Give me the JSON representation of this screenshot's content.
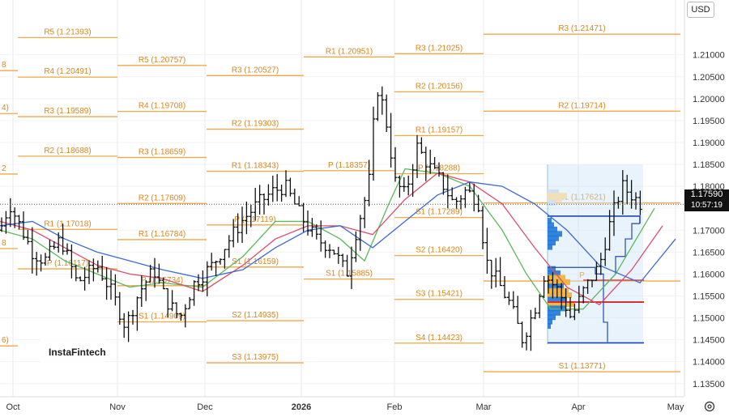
{
  "currency_button": "USD",
  "watermark": "InstaFintech",
  "last_price": {
    "value": "1.17590",
    "countdown": "10:57:19",
    "price": 1.1759
  },
  "colors": {
    "pivot": "#f0a848",
    "pivot_text": "#d9861c",
    "candles": "#111111",
    "ma_green": "#5cb85c",
    "ma_red": "#d94f6a",
    "ma_blue": "#3e6ad4",
    "grid": "#e8e8e8",
    "profile_blue": "#1f78d8",
    "profile_orange": "#f5b030",
    "range_box": "#cfe4f7",
    "poc_red": "#d9262c",
    "box_blue": "#2149b8"
  },
  "chart_data": {
    "type": "candlestick",
    "symbol_unit": "USD",
    "y_range": [
      1.132,
      1.2225
    ],
    "y_ticks": [
      "1.21000",
      "1.20500",
      "1.20000",
      "1.19500",
      "1.19000",
      "1.18500",
      "1.18000",
      "1.17500",
      "1.17000",
      "1.16500",
      "1.16000",
      "1.15500",
      "1.15000",
      "1.14500",
      "1.14000",
      "1.13500"
    ],
    "x_labels": [
      "Oct",
      "Nov",
      "Dec",
      "2026",
      "Feb",
      "Mar",
      "Apr",
      "May"
    ],
    "pivot_levels": [
      {
        "label": "8",
        "value": 1.2064,
        "period": 0
      },
      {
        "label": "4)",
        "value": 1.1966,
        "period": 0
      },
      {
        "label": "2",
        "value": 1.1828,
        "period": 0
      },
      {
        "label": "8",
        "value": 1.1658,
        "period": 0
      },
      {
        "label": "6)",
        "value": 1.1436,
        "period": 0
      },
      {
        "label": "R5 (1.21393)",
        "value": 1.21393,
        "period": 1
      },
      {
        "label": "R4 (1.20491)",
        "value": 1.20491,
        "period": 1
      },
      {
        "label": "R3 (1.19589)",
        "value": 1.19589,
        "period": 1
      },
      {
        "label": "R2 (1.18688)",
        "value": 1.18688,
        "period": 1
      },
      {
        "label": "R1 (1.17018)",
        "value": 1.17018,
        "period": 1
      },
      {
        "label": "P (1.16117)",
        "value": 1.16117,
        "period": 1
      },
      {
        "label": "R5 (1.20757)",
        "value": 1.20757,
        "period": 2
      },
      {
        "label": "R4 (1.19708)",
        "value": 1.19708,
        "period": 2
      },
      {
        "label": "R3 (1.18659)",
        "value": 1.18659,
        "period": 2
      },
      {
        "label": "R2 (1.17609)",
        "value": 1.17609,
        "period": 2
      },
      {
        "label": "R1 (1.16784)",
        "value": 1.16784,
        "period": 2
      },
      {
        "label": "P (1.15734)",
        "value": 1.15734,
        "period": 2
      },
      {
        "label": "S1 (1.14909)",
        "value": 1.14909,
        "period": 2
      },
      {
        "label": "R3 (1.20527)",
        "value": 1.20527,
        "period": 3
      },
      {
        "label": "R2 (1.19303)",
        "value": 1.19303,
        "period": 3
      },
      {
        "label": "R1 (1.18343)",
        "value": 1.18343,
        "period": 3
      },
      {
        "label": "P (1.17119)",
        "value": 1.17119,
        "period": 3
      },
      {
        "label": "S1 (1.16159)",
        "value": 1.16159,
        "period": 3
      },
      {
        "label": "S2 (1.14935)",
        "value": 1.14935,
        "period": 3
      },
      {
        "label": "S3 (1.13975)",
        "value": 1.13975,
        "period": 3
      },
      {
        "label": "R1 (1.20951)",
        "value": 1.20951,
        "period": 4
      },
      {
        "label": "P (1.18357)",
        "value": 1.18357,
        "period": 4
      },
      {
        "label": "S1 (1.15885)",
        "value": 1.15885,
        "period": 4
      },
      {
        "label": "R3 (1.21025)",
        "value": 1.21025,
        "period": 5
      },
      {
        "label": "R2 (1.20156)",
        "value": 1.20156,
        "period": 5
      },
      {
        "label": "R1 (1.19157)",
        "value": 1.19157,
        "period": 5
      },
      {
        "label": "P (1.18288)",
        "value": 1.18288,
        "period": 5
      },
      {
        "label": "S1 (1.17289)",
        "value": 1.17289,
        "period": 5
      },
      {
        "label": "S2 (1.16420)",
        "value": 1.1642,
        "period": 5
      },
      {
        "label": "S3 (1.15421)",
        "value": 1.15421,
        "period": 5
      },
      {
        "label": "S4 (1.14423)",
        "value": 1.14423,
        "period": 5
      },
      {
        "label": "R3 (1.21471)",
        "value": 1.21471,
        "period": 6
      },
      {
        "label": "R2 (1.19714)",
        "value": 1.19714,
        "period": 6
      },
      {
        "label": "R1 (1.17621)",
        "value": 1.17621,
        "period": 6
      },
      {
        "label": "P",
        "value": 1.1584,
        "period": 6
      },
      {
        "label": "S1 (1.13771)",
        "value": 1.13771,
        "period": 6
      }
    ],
    "price_path": [
      {
        "t": 0,
        "c": 1.17
      },
      {
        "t": 12,
        "c": 1.176
      },
      {
        "t": 22,
        "c": 1.172
      },
      {
        "t": 40,
        "c": 1.165
      },
      {
        "t": 55,
        "c": 1.163
      },
      {
        "t": 75,
        "c": 1.168
      },
      {
        "t": 95,
        "c": 1.158
      },
      {
        "t": 120,
        "c": 1.162
      },
      {
        "t": 140,
        "c": 1.155
      },
      {
        "t": 155,
        "c": 1.148
      },
      {
        "t": 172,
        "c": 1.156
      },
      {
        "t": 190,
        "c": 1.161
      },
      {
        "t": 205,
        "c": 1.154
      },
      {
        "t": 222,
        "c": 1.15
      },
      {
        "t": 240,
        "c": 1.158
      },
      {
        "t": 262,
        "c": 1.162
      },
      {
        "t": 280,
        "c": 1.167
      },
      {
        "t": 298,
        "c": 1.172
      },
      {
        "t": 318,
        "c": 1.176
      },
      {
        "t": 338,
        "c": 1.179
      },
      {
        "t": 352,
        "c": 1.18
      },
      {
        "t": 372,
        "c": 1.173
      },
      {
        "t": 390,
        "c": 1.168
      },
      {
        "t": 410,
        "c": 1.166
      },
      {
        "t": 428,
        "c": 1.16
      },
      {
        "t": 440,
        "c": 1.17
      },
      {
        "t": 455,
        "c": 1.18
      },
      {
        "t": 465,
        "c": 1.203
      },
      {
        "t": 475,
        "c": 1.197
      },
      {
        "t": 488,
        "c": 1.181
      },
      {
        "t": 500,
        "c": 1.178
      },
      {
        "t": 515,
        "c": 1.189
      },
      {
        "t": 528,
        "c": 1.185
      },
      {
        "t": 545,
        "c": 1.181
      },
      {
        "t": 560,
        "c": 1.176
      },
      {
        "t": 575,
        "c": 1.179
      },
      {
        "t": 590,
        "c": 1.177
      },
      {
        "t": 600,
        "c": 1.163
      },
      {
        "t": 615,
        "c": 1.158
      },
      {
        "t": 630,
        "c": 1.153
      },
      {
        "t": 645,
        "c": 1.145
      },
      {
        "t": 660,
        "c": 1.152
      },
      {
        "t": 672,
        "c": 1.16
      },
      {
        "t": 690,
        "c": 1.156
      },
      {
        "t": 705,
        "c": 1.15
      },
      {
        "t": 720,
        "c": 1.156
      },
      {
        "t": 740,
        "c": 1.162
      },
      {
        "t": 755,
        "c": 1.173
      },
      {
        "t": 768,
        "c": 1.18
      },
      {
        "t": 780,
        "c": 1.178
      },
      {
        "t": 792,
        "c": 1.1759
      }
    ],
    "indicators": {
      "ma_green": [
        {
          "t": 0,
          "v": 1.17
        },
        {
          "t": 40,
          "v": 1.168
        },
        {
          "t": 80,
          "v": 1.163
        },
        {
          "t": 120,
          "v": 1.16
        },
        {
          "t": 160,
          "v": 1.157
        },
        {
          "t": 200,
          "v": 1.158
        },
        {
          "t": 250,
          "v": 1.157
        },
        {
          "t": 300,
          "v": 1.164
        },
        {
          "t": 340,
          "v": 1.172
        },
        {
          "t": 380,
          "v": 1.172
        },
        {
          "t": 420,
          "v": 1.168
        },
        {
          "t": 450,
          "v": 1.163
        },
        {
          "t": 480,
          "v": 1.176
        },
        {
          "t": 500,
          "v": 1.184
        },
        {
          "t": 540,
          "v": 1.183
        },
        {
          "t": 580,
          "v": 1.18
        },
        {
          "t": 620,
          "v": 1.17
        },
        {
          "t": 650,
          "v": 1.16
        },
        {
          "t": 680,
          "v": 1.152
        },
        {
          "t": 720,
          "v": 1.152
        },
        {
          "t": 760,
          "v": 1.16
        },
        {
          "t": 808,
          "v": 1.175
        }
      ],
      "ma_red": [
        {
          "t": 0,
          "v": 1.172
        },
        {
          "t": 40,
          "v": 1.17
        },
        {
          "t": 80,
          "v": 1.166
        },
        {
          "t": 120,
          "v": 1.162
        },
        {
          "t": 160,
          "v": 1.16
        },
        {
          "t": 200,
          "v": 1.159
        },
        {
          "t": 250,
          "v": 1.156
        },
        {
          "t": 300,
          "v": 1.162
        },
        {
          "t": 340,
          "v": 1.168
        },
        {
          "t": 380,
          "v": 1.171
        },
        {
          "t": 420,
          "v": 1.171
        },
        {
          "t": 460,
          "v": 1.169
        },
        {
          "t": 500,
          "v": 1.177
        },
        {
          "t": 540,
          "v": 1.183
        },
        {
          "t": 580,
          "v": 1.181
        },
        {
          "t": 620,
          "v": 1.176
        },
        {
          "t": 660,
          "v": 1.166
        },
        {
          "t": 700,
          "v": 1.157
        },
        {
          "t": 740,
          "v": 1.153
        },
        {
          "t": 780,
          "v": 1.161
        },
        {
          "t": 818,
          "v": 1.171
        }
      ],
      "ma_blue": [
        {
          "t": 0,
          "v": 1.171
        },
        {
          "t": 40,
          "v": 1.172
        },
        {
          "t": 80,
          "v": 1.168
        },
        {
          "t": 120,
          "v": 1.165
        },
        {
          "t": 160,
          "v": 1.163
        },
        {
          "t": 200,
          "v": 1.161
        },
        {
          "t": 250,
          "v": 1.159
        },
        {
          "t": 300,
          "v": 1.161
        },
        {
          "t": 340,
          "v": 1.166
        },
        {
          "t": 380,
          "v": 1.17
        },
        {
          "t": 420,
          "v": 1.171
        },
        {
          "t": 460,
          "v": 1.166
        },
        {
          "t": 500,
          "v": 1.172
        },
        {
          "t": 540,
          "v": 1.178
        },
        {
          "t": 580,
          "v": 1.181
        },
        {
          "t": 620,
          "v": 1.18
        },
        {
          "t": 660,
          "v": 1.176
        },
        {
          "t": 700,
          "v": 1.17
        },
        {
          "t": 740,
          "v": 1.162
        },
        {
          "t": 790,
          "v": 1.158
        },
        {
          "t": 834,
          "v": 1.168
        }
      ]
    },
    "volume_profiles": [
      {
        "start": 1.18,
        "end": 1.1735,
        "poc": 1.174
      },
      {
        "start": 1.164,
        "end": 1.146,
        "poc": 1.1536
      }
    ],
    "grid": true
  }
}
